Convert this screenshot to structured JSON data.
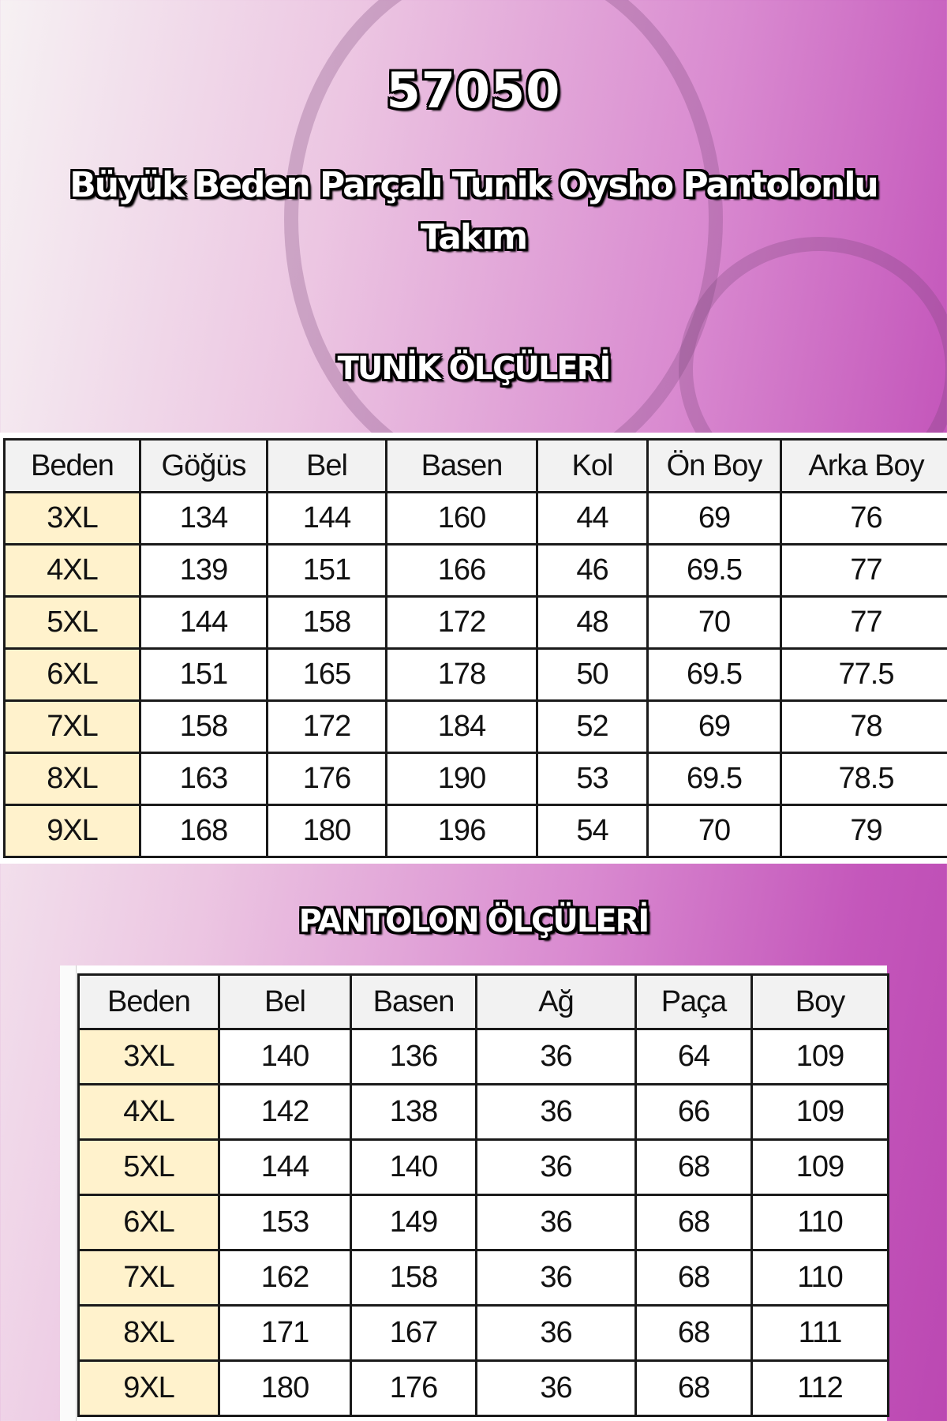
{
  "header": {
    "code": "57050",
    "subtitle": "Büyük Beden Parçalı Tunik  Oysho Pantolonlu Takım"
  },
  "tunik": {
    "title": "TUNİK ÖLÇÜLERİ",
    "columns": [
      "Beden",
      "Göğüs",
      "Bel",
      "Basen",
      "Kol",
      "Ön Boy",
      "Arka Boy"
    ],
    "rows": [
      [
        "3XL",
        "134",
        "144",
        "160",
        "44",
        "69",
        "76"
      ],
      [
        "4XL",
        "139",
        "151",
        "166",
        "46",
        "69.5",
        "77"
      ],
      [
        "5XL",
        "144",
        "158",
        "172",
        "48",
        "70",
        "77"
      ],
      [
        "6XL",
        "151",
        "165",
        "178",
        "50",
        "69.5",
        "77.5"
      ],
      [
        "7XL",
        "158",
        "172",
        "184",
        "52",
        "69",
        "78"
      ],
      [
        "8XL",
        "163",
        "176",
        "190",
        "53",
        "69.5",
        "78.5"
      ],
      [
        "9XL",
        "168",
        "180",
        "196",
        "54",
        "70",
        "79"
      ]
    ]
  },
  "pantolon": {
    "title": "PANTOLON ÖLÇÜLERİ",
    "columns": [
      "Beden",
      "Bel",
      "Basen",
      "Ağ",
      "Paça",
      "Boy"
    ],
    "rows": [
      [
        "3XL",
        "140",
        "136",
        "36",
        "64",
        "109"
      ],
      [
        "4XL",
        "142",
        "138",
        "36",
        "66",
        "109"
      ],
      [
        "5XL",
        "144",
        "140",
        "36",
        "68",
        "109"
      ],
      [
        "6XL",
        "153",
        "149",
        "36",
        "68",
        "110"
      ],
      [
        "7XL",
        "162",
        "158",
        "36",
        "68",
        "110"
      ],
      [
        "8XL",
        "171",
        "167",
        "36",
        "68",
        "111"
      ],
      [
        "9XL",
        "180",
        "176",
        "36",
        "68",
        "112"
      ]
    ]
  },
  "colors": {
    "size_cell": "#fff2cc",
    "header_cell": "#f2f2f2",
    "background_accent": "#c457bb"
  }
}
